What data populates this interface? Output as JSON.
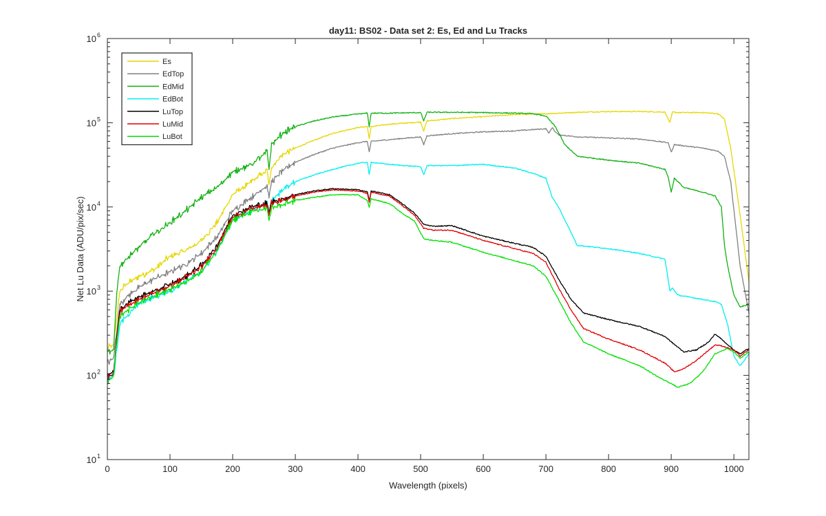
{
  "chart_data": {
    "type": "line",
    "title": "day11: BS02 - Data set 2: Es, Ed and Lu Tracks",
    "xlabel": "Wavelength (pixels)",
    "ylabel": "Net Lu Data (ADU/pix/sec)",
    "xlim": [
      0,
      1024
    ],
    "ylim": [
      10,
      1000000
    ],
    "yscale": "log",
    "grid": false,
    "legend_position": "top-left",
    "x_ticks": [
      0,
      100,
      200,
      300,
      400,
      500,
      600,
      700,
      800,
      900,
      1000
    ],
    "y_ticks": [
      {
        "value": 10,
        "base": "10",
        "exp": "1"
      },
      {
        "value": 100,
        "base": "10",
        "exp": "2"
      },
      {
        "value": 1000,
        "base": "10",
        "exp": "3"
      },
      {
        "value": 10000,
        "base": "10",
        "exp": "4"
      },
      {
        "value": 100000,
        "base": "10",
        "exp": "5"
      },
      {
        "value": 1000000,
        "base": "10",
        "exp": "6"
      }
    ],
    "series": [
      {
        "name": "Es",
        "color": "#e6d600",
        "x": [
          0,
          10,
          15,
          20,
          30,
          50,
          75,
          100,
          125,
          150,
          175,
          200,
          230,
          255,
          258,
          262,
          280,
          300,
          330,
          360,
          400,
          415,
          418,
          421,
          450,
          500,
          505,
          510,
          550,
          600,
          650,
          700,
          750,
          800,
          850,
          890,
          898,
          902,
          910,
          950,
          975,
          985,
          995,
          1010,
          1024
        ],
        "y": [
          210,
          230,
          500,
          1000,
          1200,
          1500,
          1800,
          2600,
          3000,
          4000,
          6500,
          14000,
          20000,
          27000,
          18000,
          30000,
          42000,
          50000,
          62000,
          75000,
          88000,
          90000,
          65000,
          90000,
          96000,
          102000,
          80000,
          105000,
          112000,
          118000,
          125000,
          128000,
          133000,
          136000,
          136000,
          134000,
          100000,
          134000,
          132000,
          132000,
          128000,
          110000,
          50000,
          8000,
          1300
        ]
      },
      {
        "name": "EdTop",
        "color": "#808080",
        "x": [
          0,
          10,
          15,
          20,
          30,
          50,
          75,
          100,
          125,
          150,
          175,
          200,
          230,
          255,
          258,
          262,
          280,
          300,
          330,
          360,
          400,
          415,
          418,
          421,
          450,
          500,
          505,
          510,
          550,
          600,
          650,
          700,
          705,
          710,
          715,
          720,
          750,
          800,
          850,
          895,
          900,
          905,
          950,
          975,
          985,
          995,
          1010,
          1024
        ],
        "y": [
          140,
          160,
          350,
          700,
          850,
          1100,
          1400,
          1700,
          2100,
          2800,
          4400,
          9000,
          13000,
          18000,
          13000,
          20000,
          27000,
          34000,
          42000,
          50000,
          58000,
          60000,
          45000,
          60000,
          63000,
          68000,
          55000,
          70000,
          74000,
          78000,
          80000,
          85000,
          75000,
          88000,
          78000,
          72000,
          68000,
          66000,
          64000,
          58000,
          45000,
          55000,
          50000,
          46000,
          40000,
          20000,
          2000,
          550
        ]
      },
      {
        "name": "EdMid",
        "color": "#10b010",
        "x": [
          0,
          10,
          15,
          20,
          30,
          50,
          75,
          100,
          125,
          150,
          175,
          200,
          230,
          255,
          258,
          262,
          280,
          300,
          330,
          360,
          400,
          415,
          418,
          421,
          450,
          500,
          505,
          510,
          550,
          600,
          650,
          680,
          700,
          715,
          730,
          750,
          800,
          850,
          890,
          895,
          900,
          905,
          920,
          950,
          970,
          980,
          985,
          990,
          1000,
          1010,
          1024
        ],
        "y": [
          180,
          200,
          1000,
          2000,
          2400,
          3300,
          4800,
          6500,
          9000,
          13000,
          17000,
          26000,
          32000,
          45000,
          28000,
          55000,
          75000,
          90000,
          105000,
          117000,
          127000,
          130000,
          90000,
          130000,
          130000,
          132000,
          105000,
          133000,
          133000,
          132000,
          130000,
          128000,
          120000,
          90000,
          55000,
          40000,
          36000,
          33000,
          28000,
          23000,
          15000,
          22000,
          17000,
          15000,
          13500,
          10000,
          3500,
          2000,
          900,
          650,
          700
        ]
      },
      {
        "name": "EdBot",
        "color": "#00eeee",
        "x": [
          0,
          10,
          15,
          20,
          30,
          50,
          75,
          100,
          125,
          150,
          175,
          200,
          230,
          255,
          258,
          262,
          280,
          300,
          330,
          360,
          400,
          415,
          418,
          421,
          450,
          500,
          505,
          510,
          550,
          600,
          650,
          680,
          700,
          710,
          720,
          740,
          750,
          800,
          850,
          890,
          898,
          902,
          910,
          950,
          970,
          980,
          990,
          1000,
          1010,
          1024
        ],
        "y": [
          90,
          100,
          200,
          400,
          500,
          700,
          850,
          1000,
          1300,
          1700,
          3000,
          7000,
          9000,
          11000,
          8000,
          12000,
          16000,
          20000,
          24000,
          28000,
          33000,
          34000,
          24000,
          34000,
          32000,
          30000,
          24000,
          31000,
          31000,
          32000,
          29000,
          25000,
          22000,
          13000,
          10000,
          5000,
          3500,
          3200,
          2800,
          2400,
          1000,
          1100,
          900,
          800,
          750,
          700,
          400,
          170,
          130,
          180
        ]
      },
      {
        "name": "LuTop",
        "color": "#000000",
        "x": [
          0,
          10,
          15,
          20,
          30,
          50,
          75,
          100,
          125,
          150,
          175,
          200,
          230,
          255,
          258,
          262,
          280,
          300,
          330,
          360,
          400,
          415,
          418,
          421,
          450,
          470,
          490,
          505,
          520,
          550,
          600,
          650,
          680,
          700,
          720,
          740,
          760,
          800,
          850,
          890,
          900,
          920,
          940,
          960,
          970,
          980,
          1000,
          1010,
          1024
        ],
        "y": [
          100,
          110,
          300,
          600,
          700,
          850,
          1000,
          1200,
          1500,
          2000,
          3500,
          8000,
          10000,
          11000,
          8500,
          11500,
          12500,
          14000,
          15500,
          16500,
          16000,
          15000,
          12000,
          15500,
          14000,
          11000,
          8500,
          6200,
          5900,
          6000,
          4500,
          3700,
          3300,
          2600,
          1400,
          800,
          550,
          460,
          380,
          290,
          250,
          190,
          200,
          250,
          310,
          270,
          200,
          180,
          210
        ]
      },
      {
        "name": "LuMid",
        "color": "#e00000",
        "x": [
          0,
          10,
          15,
          20,
          30,
          50,
          75,
          100,
          125,
          150,
          175,
          200,
          230,
          255,
          258,
          262,
          280,
          300,
          330,
          360,
          400,
          415,
          418,
          421,
          450,
          470,
          490,
          505,
          520,
          550,
          600,
          650,
          680,
          700,
          720,
          740,
          760,
          800,
          850,
          890,
          905,
          920,
          940,
          960,
          970,
          980,
          1000,
          1010,
          1024
        ],
        "y": [
          95,
          105,
          280,
          560,
          650,
          800,
          950,
          1150,
          1450,
          1900,
          3300,
          7500,
          9500,
          10500,
          8000,
          11000,
          12000,
          13500,
          15000,
          16000,
          15500,
          14500,
          11500,
          15000,
          13500,
          10500,
          8000,
          5600,
          5300,
          5300,
          4000,
          3200,
          2800,
          2200,
          1100,
          600,
          360,
          270,
          200,
          140,
          110,
          120,
          150,
          200,
          230,
          225,
          200,
          170,
          200
        ]
      },
      {
        "name": "LuBot",
        "color": "#00e000",
        "x": [
          0,
          10,
          15,
          20,
          30,
          50,
          75,
          100,
          125,
          150,
          175,
          200,
          230,
          255,
          258,
          262,
          280,
          300,
          330,
          360,
          400,
          415,
          418,
          421,
          450,
          470,
          490,
          505,
          520,
          550,
          600,
          650,
          680,
          700,
          720,
          740,
          760,
          800,
          850,
          880,
          900,
          910,
          930,
          950,
          970,
          990,
          1000,
          1010,
          1024
        ],
        "y": [
          85,
          95,
          250,
          500,
          580,
          720,
          880,
          1050,
          1300,
          1700,
          3000,
          7000,
          8800,
          9500,
          7000,
          9800,
          10500,
          12000,
          13000,
          14000,
          14000,
          12000,
          10000,
          12500,
          11000,
          8500,
          6800,
          4200,
          4000,
          3800,
          2900,
          2300,
          2000,
          1500,
          800,
          420,
          250,
          180,
          130,
          95,
          80,
          72,
          80,
          110,
          180,
          210,
          190,
          160,
          190
        ]
      }
    ]
  }
}
